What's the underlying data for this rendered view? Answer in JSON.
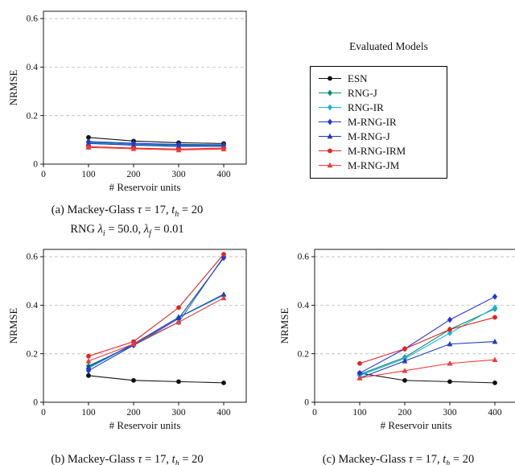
{
  "figure": {
    "background": "#ffffff",
    "axis_color": "#000000",
    "grid_color": "#bbbbbb"
  },
  "legend": {
    "title": "Evaluated Models",
    "entries": [
      {
        "label": "ESN",
        "color": "#111111",
        "marker": "circle"
      },
      {
        "label": "RNG-J",
        "color": "#0d8a72",
        "marker": "diamond"
      },
      {
        "label": "RNG-IR",
        "color": "#1ab2d8",
        "marker": "diamond"
      },
      {
        "label": "M-RNG-IR",
        "color": "#2433e0",
        "marker": "diamond"
      },
      {
        "label": "M-RNG-J",
        "color": "#1f3bb3",
        "marker": "triangle"
      },
      {
        "label": "M-RNG-IRM",
        "color": "#e0251f",
        "marker": "circle"
      },
      {
        "label": "M-RNG-JM",
        "color": "#f03a3a",
        "marker": "triangle"
      }
    ]
  },
  "chart_data": [
    {
      "name": "a",
      "type": "line",
      "xlabel": "# Reservoir units",
      "ylabel": "NRMSE",
      "x": [
        100,
        200,
        300,
        400
      ],
      "xlim": [
        0,
        450
      ],
      "ylim": [
        0,
        0.63
      ],
      "grid": "dashed-horizontal",
      "legend_position": "outside-right",
      "xticks": [
        {
          "v": 0,
          "label": "0"
        },
        {
          "v": 100,
          "label": "100"
        },
        {
          "v": 200,
          "label": "200"
        },
        {
          "v": 300,
          "label": "300"
        },
        {
          "v": 400,
          "label": "400"
        }
      ],
      "yticks": [
        {
          "v": 0,
          "label": "0"
        },
        {
          "v": 0.2,
          "label": "0.2"
        },
        {
          "v": 0.4,
          "label": "0.4"
        },
        {
          "v": 0.6,
          "label": "0.6"
        }
      ],
      "series": [
        {
          "name": "ESN",
          "values": [
            0.11,
            0.095,
            0.088,
            0.085
          ]
        },
        {
          "name": "RNG-J",
          "values": [
            0.09,
            0.082,
            0.078,
            0.078
          ]
        },
        {
          "name": "RNG-IR",
          "values": [
            0.087,
            0.08,
            0.075,
            0.073
          ]
        },
        {
          "name": "M-RNG-IR",
          "values": [
            0.093,
            0.086,
            0.081,
            0.08
          ]
        },
        {
          "name": "M-RNG-J",
          "values": [
            0.085,
            0.078,
            0.073,
            0.074
          ]
        },
        {
          "name": "M-RNG-IRM",
          "values": [
            0.072,
            0.066,
            0.062,
            0.066
          ]
        },
        {
          "name": "M-RNG-JM",
          "values": [
            0.069,
            0.063,
            0.058,
            0.062
          ]
        }
      ],
      "caption_lines": [
        [
          {
            "t": "(a) Mackey-Glass "
          },
          {
            "t": "τ",
            "it": true
          },
          {
            "t": " = 17, "
          },
          {
            "t": "t",
            "it": true
          },
          {
            "t": "h",
            "sub": true,
            "it": true
          },
          {
            "t": " = 20"
          }
        ],
        [
          {
            "t": "RNG "
          },
          {
            "t": "λ",
            "it": true
          },
          {
            "t": "i",
            "sub": true,
            "it": true
          },
          {
            "t": " = 50.0, "
          },
          {
            "t": "λ",
            "it": true
          },
          {
            "t": "f",
            "sub": true,
            "it": true
          },
          {
            "t": " = 0.01"
          }
        ]
      ]
    },
    {
      "name": "b",
      "type": "line",
      "xlabel": "# Reservoir units",
      "ylabel": "NRMSE",
      "x": [
        100,
        200,
        300,
        400
      ],
      "xlim": [
        0,
        450
      ],
      "ylim": [
        0,
        0.63
      ],
      "grid": "dashed-horizontal",
      "xticks": [
        {
          "v": 0,
          "label": "0"
        },
        {
          "v": 100,
          "label": "100"
        },
        {
          "v": 200,
          "label": "200"
        },
        {
          "v": 300,
          "label": "300"
        },
        {
          "v": 400,
          "label": "400"
        }
      ],
      "yticks": [
        {
          "v": 0,
          "label": "0"
        },
        {
          "v": 0.2,
          "label": "0.2"
        },
        {
          "v": 0.4,
          "label": "0.4"
        },
        {
          "v": 0.6,
          "label": "0.6"
        }
      ],
      "series": [
        {
          "name": "ESN",
          "values": [
            0.11,
            0.09,
            0.085,
            0.08
          ]
        },
        {
          "name": "RNG-J",
          "values": [
            0.15,
            0.235,
            0.33,
            0.6
          ]
        },
        {
          "name": "RNG-IR",
          "values": [
            0.14,
            0.24,
            0.35,
            0.44
          ]
        },
        {
          "name": "M-RNG-IR",
          "values": [
            0.13,
            0.235,
            0.345,
            0.595
          ]
        },
        {
          "name": "M-RNG-J",
          "values": [
            0.145,
            0.24,
            0.35,
            0.445
          ]
        },
        {
          "name": "M-RNG-IRM",
          "values": [
            0.19,
            0.25,
            0.39,
            0.61
          ]
        },
        {
          "name": "M-RNG-JM",
          "values": [
            0.17,
            0.24,
            0.33,
            0.43
          ]
        }
      ],
      "caption_lines": [
        [
          {
            "t": "(b) Mackey-Glass "
          },
          {
            "t": "τ",
            "it": true
          },
          {
            "t": " = 17, "
          },
          {
            "t": "t",
            "it": true
          },
          {
            "t": "h",
            "sub": true,
            "it": true
          },
          {
            "t": " = 20"
          }
        ]
      ]
    },
    {
      "name": "c",
      "type": "line",
      "xlabel": "# Reservoir units",
      "ylabel": "NRMSE",
      "x": [
        100,
        200,
        300,
        400
      ],
      "xlim": [
        0,
        450
      ],
      "ylim": [
        0,
        0.63
      ],
      "grid": "dashed-horizontal",
      "xticks": [
        {
          "v": 0,
          "label": "0"
        },
        {
          "v": 100,
          "label": "100"
        },
        {
          "v": 200,
          "label": "200"
        },
        {
          "v": 300,
          "label": "300"
        },
        {
          "v": 400,
          "label": "400"
        }
      ],
      "yticks": [
        {
          "v": 0,
          "label": "0"
        },
        {
          "v": 0.2,
          "label": "0.2"
        },
        {
          "v": 0.4,
          "label": "0.4"
        },
        {
          "v": 0.6,
          "label": "0.6"
        }
      ],
      "series": [
        {
          "name": "ESN",
          "values": [
            0.12,
            0.09,
            0.085,
            0.08
          ]
        },
        {
          "name": "RNG-J",
          "values": [
            0.115,
            0.185,
            0.3,
            0.385
          ]
        },
        {
          "name": "RNG-IR",
          "values": [
            0.11,
            0.18,
            0.285,
            0.39
          ]
        },
        {
          "name": "M-RNG-IR",
          "values": [
            0.12,
            0.22,
            0.34,
            0.435
          ]
        },
        {
          "name": "M-RNG-J",
          "values": [
            0.1,
            0.17,
            0.24,
            0.25
          ]
        },
        {
          "name": "M-RNG-IRM",
          "values": [
            0.16,
            0.22,
            0.3,
            0.35
          ]
        },
        {
          "name": "M-RNG-JM",
          "values": [
            0.1,
            0.13,
            0.16,
            0.175
          ]
        }
      ],
      "caption_lines": [
        [
          {
            "t": "(c) Mackey-Glass "
          },
          {
            "t": "τ",
            "it": true
          },
          {
            "t": " = 17, "
          },
          {
            "t": "t",
            "it": true
          },
          {
            "t": "h",
            "sub": true,
            "it": true
          },
          {
            "t": " = 20"
          }
        ]
      ]
    }
  ]
}
